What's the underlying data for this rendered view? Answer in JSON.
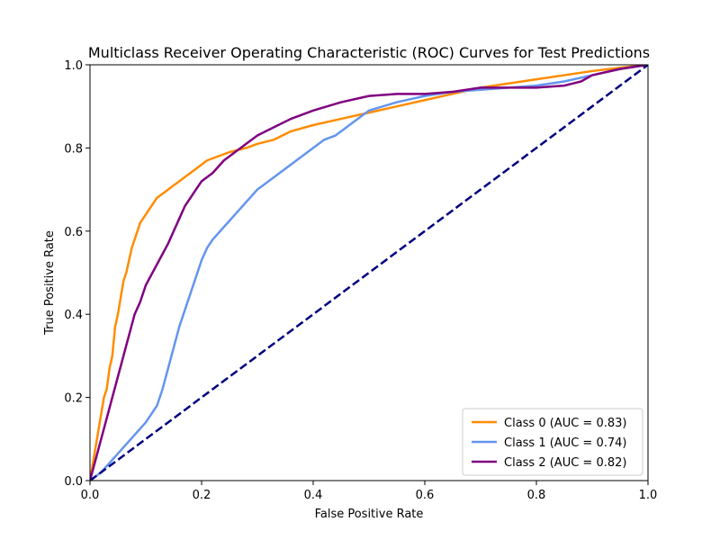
{
  "chart_data": {
    "type": "line",
    "title": "Multiclass Receiver Operating Characteristic (ROC) Curves for Test Predictions",
    "xlabel": "False Positive Rate",
    "ylabel": "True Positive Rate",
    "xlim": [
      0.0,
      1.0
    ],
    "ylim": [
      0.0,
      1.0
    ],
    "xticks": [
      "0.0",
      "0.2",
      "0.4",
      "0.6",
      "0.8",
      "1.0"
    ],
    "yticks": [
      "0.0",
      "0.2",
      "0.4",
      "0.6",
      "0.8",
      "1.0"
    ],
    "grid": false,
    "legend_position": "lower-right",
    "series": [
      {
        "name": "Class 0 (AUC = 0.83)",
        "color": "#ff8c00",
        "x": [
          0,
          0.005,
          0.01,
          0.015,
          0.02,
          0.025,
          0.03,
          0.035,
          0.04,
          0.045,
          0.05,
          0.055,
          0.06,
          0.065,
          0.07,
          0.075,
          0.08,
          0.085,
          0.09,
          0.1,
          0.11,
          0.12,
          0.13,
          0.14,
          0.15,
          0.17,
          0.19,
          0.21,
          0.23,
          0.25,
          0.28,
          0.3,
          0.33,
          0.36,
          0.4,
          0.45,
          0.5,
          0.55,
          0.6,
          0.65,
          0.7,
          0.75,
          0.8,
          0.85,
          0.9,
          0.95,
          1.0
        ],
        "y": [
          0,
          0.04,
          0.08,
          0.12,
          0.16,
          0.2,
          0.22,
          0.27,
          0.3,
          0.37,
          0.4,
          0.44,
          0.48,
          0.5,
          0.53,
          0.56,
          0.58,
          0.6,
          0.62,
          0.64,
          0.66,
          0.68,
          0.69,
          0.7,
          0.71,
          0.73,
          0.75,
          0.77,
          0.78,
          0.79,
          0.8,
          0.81,
          0.82,
          0.84,
          0.855,
          0.87,
          0.885,
          0.9,
          0.915,
          0.93,
          0.945,
          0.955,
          0.965,
          0.975,
          0.985,
          0.993,
          1.0
        ]
      },
      {
        "name": "Class 1 (AUC = 0.74)",
        "color": "#6495ed",
        "x": [
          0,
          0.02,
          0.04,
          0.06,
          0.08,
          0.1,
          0.12,
          0.13,
          0.14,
          0.15,
          0.16,
          0.17,
          0.18,
          0.19,
          0.2,
          0.21,
          0.22,
          0.24,
          0.26,
          0.28,
          0.3,
          0.32,
          0.34,
          0.36,
          0.38,
          0.4,
          0.42,
          0.44,
          0.46,
          0.48,
          0.5,
          0.55,
          0.6,
          0.65,
          0.7,
          0.75,
          0.8,
          0.85,
          0.9,
          0.95,
          1.0
        ],
        "y": [
          0,
          0.02,
          0.05,
          0.08,
          0.11,
          0.14,
          0.18,
          0.22,
          0.27,
          0.32,
          0.37,
          0.41,
          0.45,
          0.49,
          0.53,
          0.56,
          0.58,
          0.61,
          0.64,
          0.67,
          0.7,
          0.72,
          0.74,
          0.76,
          0.78,
          0.8,
          0.82,
          0.83,
          0.85,
          0.87,
          0.89,
          0.91,
          0.925,
          0.935,
          0.94,
          0.945,
          0.95,
          0.96,
          0.975,
          0.99,
          1.0
        ]
      },
      {
        "name": "Class 2 (AUC = 0.82)",
        "color": "#800080",
        "x": [
          0,
          0.01,
          0.02,
          0.03,
          0.04,
          0.05,
          0.06,
          0.07,
          0.08,
          0.09,
          0.1,
          0.12,
          0.14,
          0.15,
          0.16,
          0.17,
          0.18,
          0.19,
          0.2,
          0.22,
          0.24,
          0.26,
          0.28,
          0.3,
          0.33,
          0.36,
          0.4,
          0.45,
          0.5,
          0.55,
          0.6,
          0.65,
          0.7,
          0.75,
          0.8,
          0.85,
          0.88,
          0.9,
          0.95,
          1.0
        ],
        "y": [
          0,
          0.05,
          0.1,
          0.15,
          0.2,
          0.25,
          0.3,
          0.35,
          0.4,
          0.43,
          0.47,
          0.52,
          0.57,
          0.6,
          0.63,
          0.66,
          0.68,
          0.7,
          0.72,
          0.74,
          0.77,
          0.79,
          0.81,
          0.83,
          0.85,
          0.87,
          0.89,
          0.91,
          0.925,
          0.93,
          0.93,
          0.935,
          0.945,
          0.945,
          0.945,
          0.95,
          0.96,
          0.975,
          0.99,
          1.0
        ]
      },
      {
        "name": "",
        "role": "chance-diagonal",
        "color": "#000080",
        "dashed": true,
        "x": [
          0,
          1
        ],
        "y": [
          0,
          1
        ]
      }
    ]
  }
}
